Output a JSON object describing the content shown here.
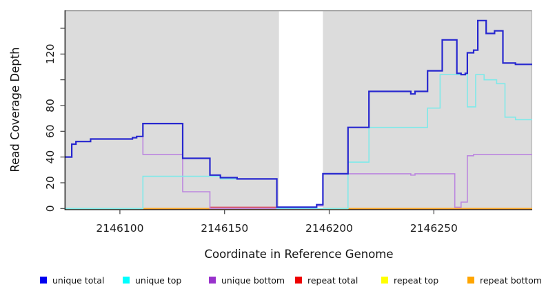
{
  "chart_data": {
    "type": "line",
    "subtype": "step-after",
    "title": "",
    "xlabel": "Coordinate in Reference Genome",
    "ylabel": "Read Coverage Depth",
    "xlim": [
      2146074,
      2146297
    ],
    "ylim": [
      0,
      150
    ],
    "grid": false,
    "plot_bg_color": "#dcdcdc",
    "gap_region": {
      "start": 2146176,
      "end": 2146197,
      "color": "#ffffff"
    },
    "x_ticks": [
      2146100,
      2146150,
      2146200,
      2146250
    ],
    "x_tick_labels": [
      "2146100",
      "2146150",
      "2146200",
      "2146250"
    ],
    "y_ticks": [
      0,
      20,
      40,
      60,
      80,
      100,
      120,
      140
    ],
    "y_tick_labels": [
      "0",
      "20",
      "40",
      "60",
      "80",
      "",
      "120",
      ""
    ],
    "series": [
      {
        "name": "repeat top",
        "color": "#ffff00",
        "width": 1.4,
        "points": [
          [
            2146074,
            0
          ],
          [
            2146297,
            0
          ]
        ]
      },
      {
        "name": "repeat total",
        "color": "#d44a62",
        "width": 1.6,
        "points": [
          [
            2146074,
            0
          ],
          [
            2146143,
            1
          ],
          [
            2146176,
            0
          ],
          [
            2146297,
            0
          ]
        ]
      },
      {
        "name": "repeat bottom",
        "color": "#ffa426",
        "width": 1.8,
        "points": [
          [
            2146111,
            0
          ],
          [
            2146297,
            0
          ]
        ]
      },
      {
        "name": "unique bottom",
        "color": "#bb86df",
        "width": 1.6,
        "points": [
          [
            2146074,
            40
          ],
          [
            2146077,
            50
          ],
          [
            2146079,
            52
          ],
          [
            2146086,
            54
          ],
          [
            2146106,
            55
          ],
          [
            2146108,
            56
          ],
          [
            2146111,
            42
          ],
          [
            2146130,
            13
          ],
          [
            2146143,
            0
          ],
          [
            2146194,
            2
          ],
          [
            2146197,
            27
          ],
          [
            2146239,
            26
          ],
          [
            2146241,
            27
          ],
          [
            2146260,
            1
          ],
          [
            2146263,
            5
          ],
          [
            2146266,
            41
          ],
          [
            2146269,
            42
          ],
          [
            2146297,
            42
          ]
        ]
      },
      {
        "name": "unique top",
        "color": "#7fe9e9",
        "width": 1.6,
        "points": [
          [
            2146074,
            0
          ],
          [
            2146111,
            25
          ],
          [
            2146148,
            23
          ],
          [
            2146175,
            0
          ],
          [
            2146209,
            36
          ],
          [
            2146219,
            63
          ],
          [
            2146247,
            78
          ],
          [
            2146253,
            104
          ],
          [
            2146266,
            79
          ],
          [
            2146270,
            104
          ],
          [
            2146274,
            100
          ],
          [
            2146280,
            97
          ],
          [
            2146284,
            71
          ],
          [
            2146289,
            69
          ],
          [
            2146297,
            69
          ]
        ]
      },
      {
        "name": "unique total",
        "color": "#2727cf",
        "width": 2.2,
        "points": [
          [
            2146074,
            40
          ],
          [
            2146077,
            50
          ],
          [
            2146079,
            52
          ],
          [
            2146086,
            54
          ],
          [
            2146106,
            55
          ],
          [
            2146108,
            56
          ],
          [
            2146111,
            66
          ],
          [
            2146130,
            39
          ],
          [
            2146143,
            26
          ],
          [
            2146148,
            24
          ],
          [
            2146156,
            23
          ],
          [
            2146175,
            1
          ],
          [
            2146194,
            3
          ],
          [
            2146197,
            27
          ],
          [
            2146209,
            63
          ],
          [
            2146219,
            91
          ],
          [
            2146239,
            89
          ],
          [
            2146241,
            91
          ],
          [
            2146247,
            107
          ],
          [
            2146254,
            131
          ],
          [
            2146261,
            105
          ],
          [
            2146263,
            104
          ],
          [
            2146265,
            105
          ],
          [
            2146266,
            121
          ],
          [
            2146269,
            123
          ],
          [
            2146271,
            146
          ],
          [
            2146275,
            136
          ],
          [
            2146279,
            138
          ],
          [
            2146283,
            113
          ],
          [
            2146289,
            112
          ],
          [
            2146297,
            112
          ]
        ]
      }
    ],
    "baseline_overlap_segments": [
      {
        "color": "#9bdb9b",
        "x_start": 2146074,
        "x_end": 2146111,
        "value": 0
      },
      {
        "color": "#9bdb9b",
        "x_start": 2146197,
        "x_end": 2146209,
        "value": 0
      }
    ],
    "legend_position": "bottom"
  },
  "legend": {
    "items": [
      {
        "label": "unique total",
        "color": "#0000f0"
      },
      {
        "label": "unique top",
        "color": "#00ffff"
      },
      {
        "label": "unique bottom",
        "color": "#9932cc"
      },
      {
        "label": "repeat total",
        "color": "#ee0000"
      },
      {
        "label": "repeat top",
        "color": "#ffff00"
      },
      {
        "label": "repeat bottom",
        "color": "#ffa500"
      }
    ]
  },
  "axes": {
    "x_title": "Coordinate in Reference Genome",
    "y_title": "Read Coverage Depth"
  }
}
